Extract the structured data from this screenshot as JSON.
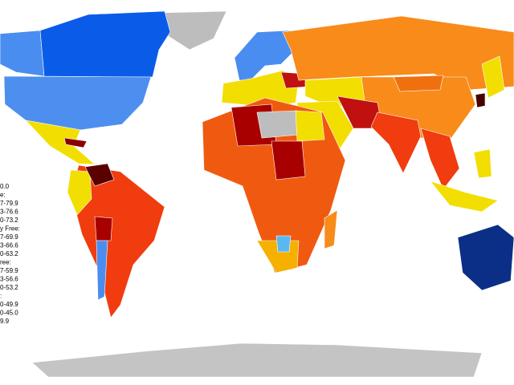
{
  "legend": {
    "items": [
      "0.0",
      "e:",
      "7-79.9",
      "3-76.6",
      "0-73.2",
      "y Free:",
      "7-69.9",
      "3-66.6",
      "0-63.2",
      "ree:",
      "7-59.9",
      "3-56.6",
      "0-53.2",
      ":",
      "0-49.9",
      "0-45.0",
      "9.9"
    ]
  }
}
